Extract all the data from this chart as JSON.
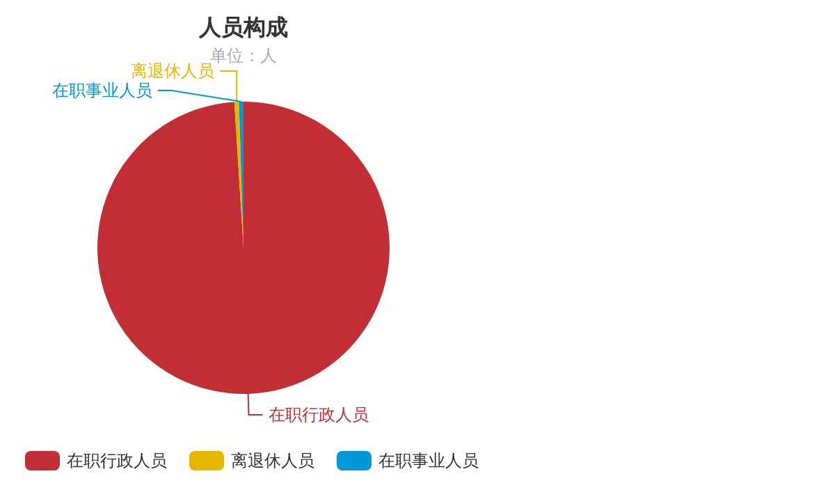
{
  "chart_data": {
    "type": "pie",
    "title": "人员构成",
    "subtitle": "单位：人",
    "categories": [
      "在职行政人员",
      "离退休人员",
      "在职事业人员"
    ],
    "values": [
      99,
      0.5,
      0.5
    ],
    "colors": [
      "#c12e34",
      "#e6b600",
      "#0098d9"
    ],
    "legend": "bottom left"
  }
}
